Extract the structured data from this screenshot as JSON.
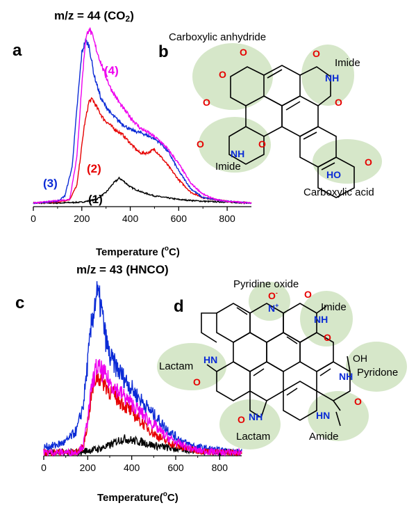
{
  "chart_data": [
    {
      "type": "line",
      "panel": "a",
      "title": "m/z = 44 (CO2)",
      "title_main": "m/z = 44 (CO",
      "title_sub": "2",
      "title_end": ")",
      "xlabel_main": "Temperature (",
      "xlabel_sup": "o",
      "xlabel_end": "C)",
      "xlim": [
        0,
        900
      ],
      "ylim": [
        0,
        1.0
      ],
      "xticks": [
        "0",
        "200",
        "400",
        "600",
        "800"
      ],
      "xtick_values": [
        0,
        200,
        400,
        600,
        800
      ],
      "series": [
        {
          "name": "(1)",
          "color": "#000000",
          "x": [
            0,
            100,
            200,
            260,
            300,
            330,
            355,
            375,
            400,
            450,
            500,
            550,
            600,
            700,
            800,
            900
          ],
          "y": [
            0.02,
            0.02,
            0.025,
            0.04,
            0.08,
            0.13,
            0.16,
            0.14,
            0.11,
            0.08,
            0.06,
            0.05,
            0.04,
            0.03,
            0.025,
            0.02
          ]
        },
        {
          "name": "(2)",
          "color": "#e60000",
          "x": [
            0,
            100,
            150,
            180,
            210,
            230,
            245,
            260,
            290,
            330,
            370,
            410,
            440,
            470,
            500,
            520,
            550,
            600,
            650,
            700,
            800,
            900
          ],
          "y": [
            0.02,
            0.025,
            0.04,
            0.12,
            0.45,
            0.59,
            0.6,
            0.56,
            0.49,
            0.44,
            0.4,
            0.34,
            0.3,
            0.3,
            0.32,
            0.29,
            0.24,
            0.15,
            0.08,
            0.05,
            0.03,
            0.02
          ]
        },
        {
          "name": "(3)",
          "color": "#0b2bd6",
          "x": [
            0,
            100,
            130,
            160,
            180,
            200,
            215,
            230,
            250,
            280,
            320,
            360,
            400,
            450,
            500,
            530,
            560,
            600,
            650,
            700,
            800,
            900
          ],
          "y": [
            0.02,
            0.03,
            0.06,
            0.22,
            0.55,
            0.86,
            0.93,
            0.9,
            0.74,
            0.6,
            0.52,
            0.47,
            0.43,
            0.41,
            0.38,
            0.35,
            0.3,
            0.2,
            0.1,
            0.05,
            0.03,
            0.02
          ]
        },
        {
          "name": "(4)",
          "color": "#ee00ee",
          "x": [
            0,
            150,
            180,
            200,
            215,
            230,
            245,
            260,
            290,
            320,
            360,
            400,
            440,
            480,
            520,
            550,
            600,
            650,
            700,
            750,
            800,
            900
          ],
          "y": [
            0.02,
            0.04,
            0.28,
            0.68,
            0.93,
            1.0,
            0.95,
            0.88,
            0.76,
            0.66,
            0.57,
            0.5,
            0.44,
            0.41,
            0.37,
            0.33,
            0.24,
            0.13,
            0.07,
            0.04,
            0.03,
            0.02
          ]
        }
      ]
    },
    {
      "type": "line",
      "panel": "c",
      "title": "m/z = 43 (HNCO)",
      "xlabel_main": "Temperature(",
      "xlabel_sup": "o",
      "xlabel_end": "C)",
      "xlim": [
        0,
        900
      ],
      "ylim": [
        0,
        1.0
      ],
      "xticks": [
        "0",
        "200",
        "400",
        "600",
        "800"
      ],
      "xtick_values": [
        0,
        200,
        400,
        600,
        800
      ],
      "series": [
        {
          "name": "black",
          "color": "#000000",
          "x": [
            0,
            150,
            200,
            250,
            300,
            340,
            370,
            400,
            450,
            500,
            550,
            600,
            700,
            800,
            900
          ],
          "y": [
            0.02,
            0.02,
            0.03,
            0.04,
            0.06,
            0.09,
            0.1,
            0.09,
            0.08,
            0.06,
            0.05,
            0.04,
            0.03,
            0.02,
            0.02
          ]
        },
        {
          "name": "blue",
          "color": "#0b2bd6",
          "x": [
            0,
            50,
            100,
            150,
            180,
            200,
            220,
            240,
            260,
            280,
            300,
            340,
            380,
            420,
            460,
            500,
            550,
            600,
            650,
            700,
            800,
            900
          ],
          "y": [
            0.05,
            0.06,
            0.08,
            0.15,
            0.3,
            0.55,
            0.8,
            0.95,
            0.88,
            0.7,
            0.58,
            0.5,
            0.43,
            0.36,
            0.3,
            0.24,
            0.17,
            0.11,
            0.07,
            0.05,
            0.03,
            0.02
          ]
        },
        {
          "name": "red",
          "color": "#e60000",
          "x": [
            0,
            150,
            180,
            200,
            220,
            240,
            260,
            280,
            300,
            340,
            380,
            420,
            460,
            500,
            550,
            600,
            650,
            700,
            800,
            900
          ],
          "y": [
            0.02,
            0.02,
            0.05,
            0.2,
            0.38,
            0.47,
            0.45,
            0.42,
            0.38,
            0.33,
            0.28,
            0.23,
            0.18,
            0.13,
            0.09,
            0.06,
            0.04,
            0.03,
            0.02,
            0.02
          ]
        },
        {
          "name": "magenta",
          "color": "#ee00ee",
          "x": [
            0,
            150,
            180,
            200,
            220,
            240,
            260,
            280,
            300,
            340,
            380,
            420,
            460,
            500,
            550,
            600,
            650,
            700,
            800,
            900
          ],
          "y": [
            0.02,
            0.02,
            0.06,
            0.22,
            0.42,
            0.52,
            0.5,
            0.47,
            0.43,
            0.38,
            0.33,
            0.28,
            0.23,
            0.18,
            0.12,
            0.08,
            0.05,
            0.03,
            0.02,
            0.02
          ]
        }
      ]
    }
  ],
  "panel_b": {
    "label": "b",
    "groups": [
      "Carboxylic anhydride",
      "Imide",
      "Imide",
      "Carboxylic acid"
    ],
    "atoms": {
      "O": "O",
      "NH": "NH",
      "N": "N",
      "HO": "HO"
    }
  },
  "panel_d": {
    "label": "d",
    "groups": [
      "Pyridine oxide",
      "Imide",
      "Lactam",
      "Pyridone",
      "Lactam",
      "Amide"
    ],
    "atoms": {
      "O": "O",
      "N": "N",
      "NH": "NH",
      "HN": "HN",
      "OH": "OH",
      "Ominus": "O",
      "minus": "-",
      "plus": "+"
    }
  },
  "colors": {
    "bubble": "#cfe3c0",
    "nitrogen": "#0b2bd6",
    "oxygen": "#e60000"
  }
}
